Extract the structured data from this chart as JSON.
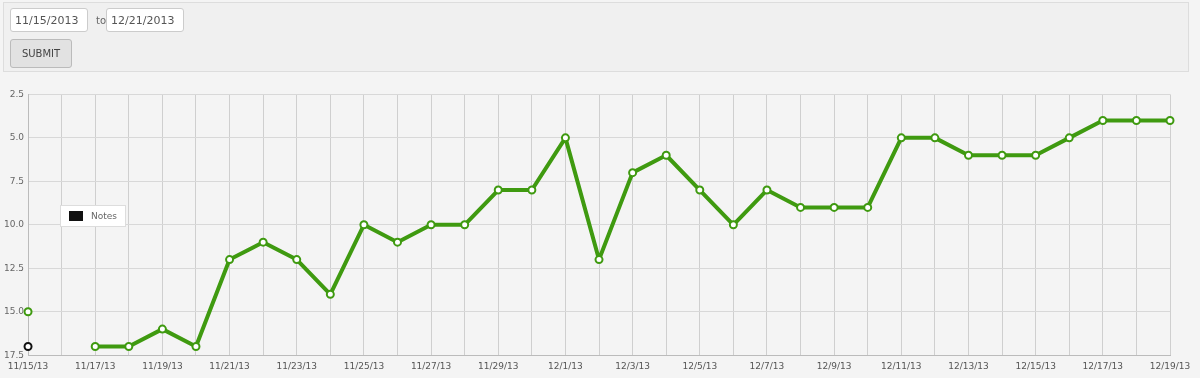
{
  "chart_data": {
    "type": "line",
    "annotations": [
      "11/15/2013",
      "to",
      "12/21/2013",
      "SUBMIT"
    ],
    "categories": [
      "11/15/13",
      null,
      "11/17/13",
      null,
      "11/19/13",
      null,
      "11/21/13",
      null,
      "11/23/13",
      null,
      "11/25/13",
      null,
      "11/27/13",
      null,
      "11/29/13",
      null,
      "12/1/13",
      null,
      "12/3/13",
      null,
      "12/5/13",
      null,
      "12/7/13",
      null,
      "12/9/13",
      null,
      "12/11/13",
      null,
      "12/13/13",
      null,
      "12/15/13",
      null,
      "12/17/13",
      null,
      "12/19/13"
    ],
    "series": [
      {
        "color": "#3f9a10",
        "values": [
          15,
          null,
          17,
          17,
          16,
          17,
          12,
          11,
          12,
          14,
          10,
          11,
          10,
          10,
          8,
          8,
          5,
          12,
          7,
          6,
          8,
          10,
          8,
          9,
          9,
          9,
          5,
          5,
          6,
          6,
          6,
          5,
          4,
          4,
          4
        ]
      },
      {
        "name": "Notes",
        "type": "scatter",
        "color": "#111111",
        "values": [
          17,
          null,
          null,
          null,
          null,
          null,
          null,
          null,
          null,
          null,
          null,
          null,
          null,
          null,
          null,
          null,
          null,
          null,
          null,
          null,
          null,
          null,
          null,
          null,
          null,
          null,
          null,
          null,
          null,
          null,
          null,
          null,
          null,
          null,
          null
        ]
      }
    ],
    "ylim": [
      17.5,
      2.5
    ],
    "yticks": [
      2.5,
      {
        "value": 5,
        "label": "5.0"
      },
      7.5,
      {
        "value": 10,
        "label": "10.0"
      },
      12.5,
      {
        "value": 15,
        "label": "15.0"
      },
      17.5
    ],
    "grid": true,
    "legend": "left",
    "marker": "circle",
    "line_style": "solid"
  }
}
